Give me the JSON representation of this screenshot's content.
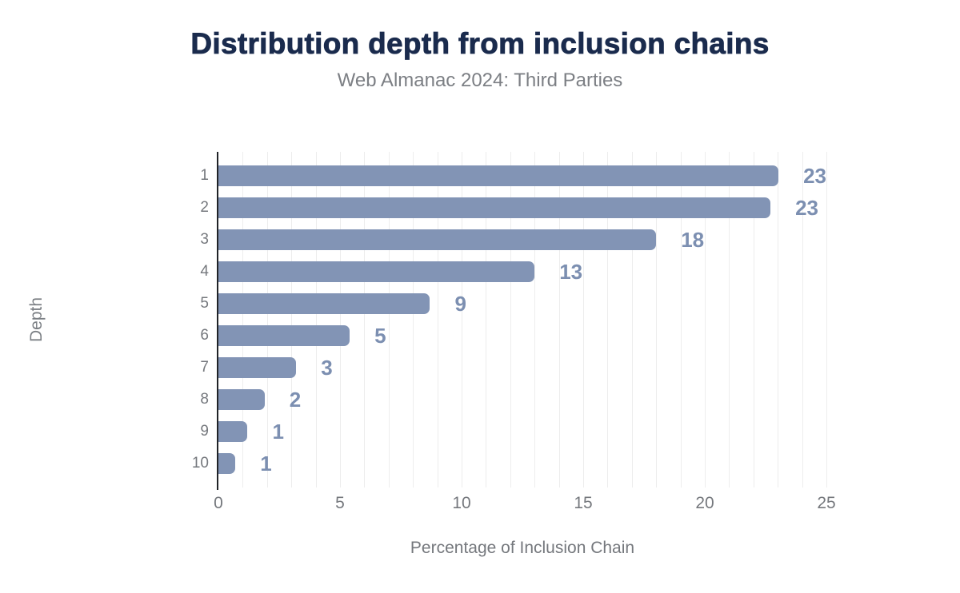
{
  "header": {
    "title": "Distribution depth from inclusion chains",
    "subtitle": "Web Almanac 2024: Third Parties"
  },
  "chart_data": {
    "type": "bar",
    "orientation": "horizontal",
    "title": "Distribution depth from inclusion chains",
    "subtitle": "Web Almanac 2024: Third Parties",
    "xlabel": "Percentage of Inclusion Chain",
    "ylabel": "Depth",
    "categories": [
      "1",
      "2",
      "3",
      "4",
      "5",
      "6",
      "7",
      "8",
      "9",
      "10"
    ],
    "values": [
      23.2,
      22.7,
      18.0,
      13.0,
      8.7,
      5.4,
      3.2,
      1.9,
      1.2,
      0.7
    ],
    "data_labels": [
      "23",
      "23",
      "18",
      "13",
      "9",
      "5",
      "3",
      "2",
      "1",
      "1"
    ],
    "xlim": [
      0,
      25
    ],
    "x_ticks": [
      "0",
      "5",
      "10",
      "15",
      "20",
      "25"
    ],
    "grid": "vertical gridlines at every 1 unit",
    "legend": "none",
    "colors": {
      "bar": "#8294b5",
      "data_label": "#7c8fb1",
      "title": "#1a2b4d",
      "subtitle": "#7c7f84",
      "axis_text": "#75787d",
      "gridline": "#ededed",
      "axis_line": "#212327",
      "background": "#ffffff"
    }
  }
}
